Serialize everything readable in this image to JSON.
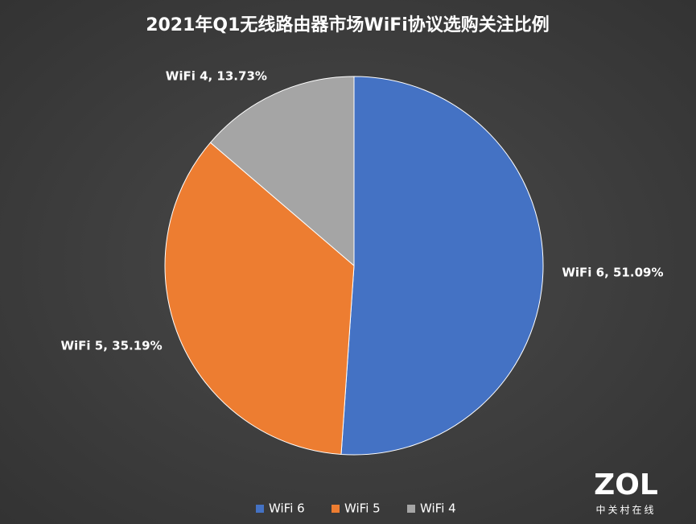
{
  "chart_data": {
    "type": "pie",
    "title": "2021年Q1无线路由器市场WiFi协议选购关注比例",
    "categories": [
      "WiFi 6",
      "WiFi 5",
      "WiFi 4"
    ],
    "values": [
      51.09,
      35.19,
      13.73
    ],
    "value_labels": [
      "WiFi 6, 51.09%",
      "WiFi 5, 35.19%",
      "WiFi 4, 13.73%"
    ],
    "colors": [
      "#4472c4",
      "#ed7d31",
      "#a5a5a5"
    ],
    "legend": "bottom"
  },
  "watermark": {
    "logo": "ZOL",
    "text": "中关村在线"
  }
}
